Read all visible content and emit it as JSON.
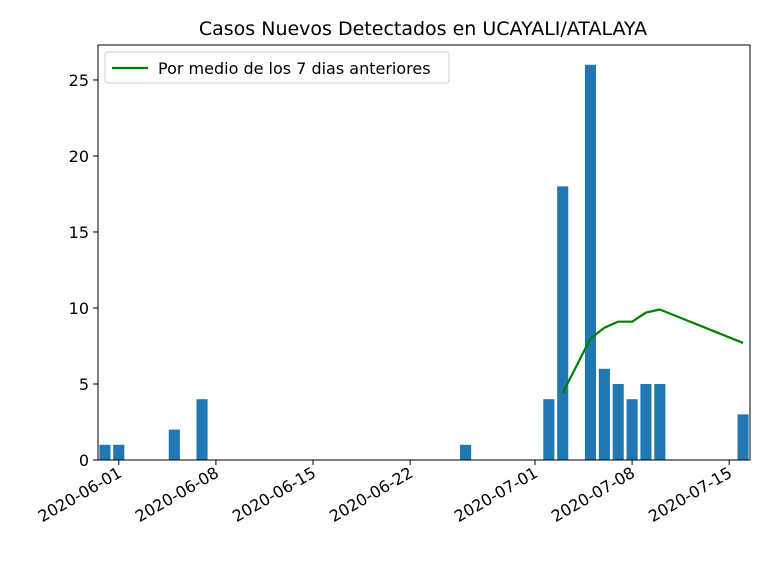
{
  "chart_data": {
    "type": "bar",
    "title": "Casos Nuevos Detectados en UCAYALI/ATALAYA",
    "xlabel": "",
    "ylabel": "",
    "x_axis": {
      "type": "date",
      "range": [
        "2020-05-31",
        "2020-07-16"
      ],
      "ticks": [
        "2020-06-01",
        "2020-06-08",
        "2020-06-15",
        "2020-06-22",
        "2020-07-01",
        "2020-07-08",
        "2020-07-15"
      ]
    },
    "ylim": [
      0,
      27.3
    ],
    "yticks": [
      0,
      5,
      10,
      15,
      20,
      25
    ],
    "grid": false,
    "legend_position": "upper-left",
    "bars": {
      "color": "#1f77b4",
      "points": [
        {
          "date": "2020-05-31",
          "value": 1
        },
        {
          "date": "2020-06-01",
          "value": 1
        },
        {
          "date": "2020-06-05",
          "value": 2
        },
        {
          "date": "2020-06-07",
          "value": 4
        },
        {
          "date": "2020-06-26",
          "value": 1
        },
        {
          "date": "2020-07-02",
          "value": 4
        },
        {
          "date": "2020-07-03",
          "value": 18
        },
        {
          "date": "2020-07-05",
          "value": 26
        },
        {
          "date": "2020-07-06",
          "value": 6
        },
        {
          "date": "2020-07-07",
          "value": 5
        },
        {
          "date": "2020-07-08",
          "value": 4
        },
        {
          "date": "2020-07-09",
          "value": 5
        },
        {
          "date": "2020-07-10",
          "value": 5
        },
        {
          "date": "2020-07-16",
          "value": 3
        }
      ]
    },
    "series": [
      {
        "name": "Por medio de los 7 dias anteriores",
        "type": "line",
        "color": "#008000",
        "points": [
          {
            "date": "2020-07-03",
            "value": 4.4
          },
          {
            "date": "2020-07-04",
            "value": 6.2
          },
          {
            "date": "2020-07-05",
            "value": 8.0
          },
          {
            "date": "2020-07-06",
            "value": 8.7
          },
          {
            "date": "2020-07-07",
            "value": 9.1
          },
          {
            "date": "2020-07-08",
            "value": 9.1
          },
          {
            "date": "2020-07-09",
            "value": 9.7
          },
          {
            "date": "2020-07-10",
            "value": 9.9
          },
          {
            "date": "2020-07-16",
            "value": 7.7
          }
        ]
      }
    ]
  }
}
